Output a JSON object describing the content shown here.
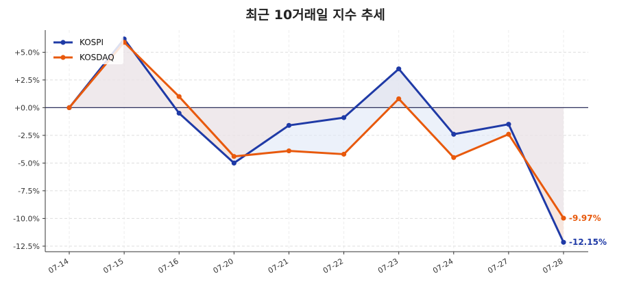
{
  "chart_data": {
    "type": "line",
    "title": "최근 10거래일 지수 추세",
    "categories": [
      "07-14",
      "07-15",
      "07-16",
      "07-20",
      "07-21",
      "07-22",
      "07-23",
      "07-24",
      "07-27",
      "07-28"
    ],
    "series": [
      {
        "name": "KOSPI",
        "color": "#1f3aa6",
        "fill_color": "#dfe8f7",
        "values": [
          0.0,
          6.2,
          -0.5,
          -5.0,
          -1.6,
          -0.9,
          3.5,
          -2.4,
          -1.5,
          -12.15
        ],
        "end_label": "-12.15%"
      },
      {
        "name": "KOSDAQ",
        "color": "#e8590c",
        "fill_color": "#fbe4d6",
        "values": [
          0.0,
          5.9,
          1.0,
          -4.4,
          -3.9,
          -4.2,
          0.8,
          -4.5,
          -2.4,
          -9.97
        ],
        "end_label": "-9.97%"
      }
    ],
    "ylim": [
      -13.0,
      7.0
    ],
    "yticks": [
      {
        "value": 5.0,
        "label": "+5.0%"
      },
      {
        "value": 2.5,
        "label": "+2.5%"
      },
      {
        "value": 0.0,
        "label": "+0.0%"
      },
      {
        "value": -2.5,
        "label": "-2.5%"
      },
      {
        "value": -5.0,
        "label": "-5.0%"
      },
      {
        "value": -7.5,
        "label": "-7.5%"
      },
      {
        "value": -10.0,
        "label": "-10.0%"
      },
      {
        "value": -12.5,
        "label": "-12.5%"
      }
    ],
    "area_fill_color": "#e9e1e6",
    "zero_line_color": "#2b2f5a",
    "grid": true,
    "legend_position": "top-left",
    "xlabel": "",
    "ylabel": ""
  }
}
